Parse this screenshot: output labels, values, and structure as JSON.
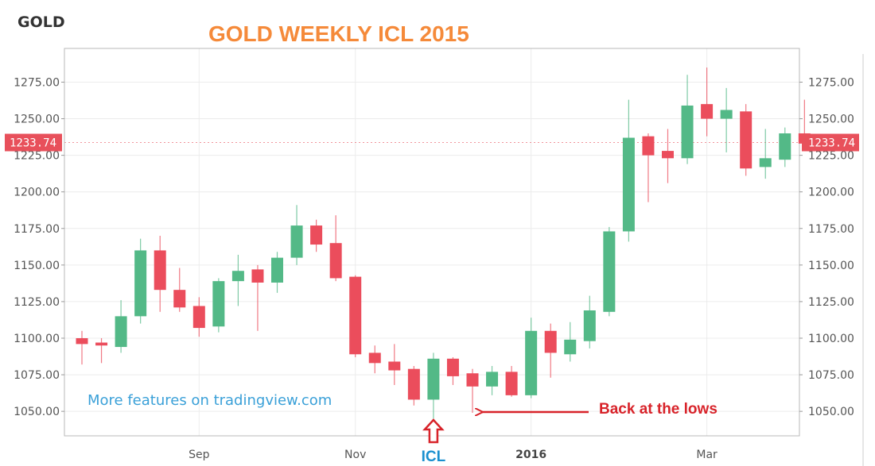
{
  "symbol": "GOLD",
  "chart_data": {
    "type": "candlestick",
    "title": "GOLD WEEKLY ICL 2015",
    "ylim": [
      1030,
      1292
    ],
    "y_ticks": [
      1050,
      1075,
      1100,
      1125,
      1150,
      1175,
      1200,
      1225,
      1250,
      1275
    ],
    "y_tick_labels": [
      "1050.00",
      "1075.00",
      "1100.00",
      "1125.00",
      "1150.00",
      "1175.00",
      "1200.00",
      "1225.00",
      "1250.00",
      "1275.00"
    ],
    "x_tick_labels": [
      {
        "label": "Sep",
        "bar": 6
      },
      {
        "label": "Nov",
        "bar": 14
      },
      {
        "label": "2016",
        "bar": 23
      },
      {
        "label": "Mar",
        "bar": 32
      }
    ],
    "candles": [
      {
        "o": 1100,
        "h": 1105,
        "l": 1082,
        "c": 1096
      },
      {
        "o": 1097,
        "h": 1100,
        "l": 1083,
        "c": 1095
      },
      {
        "o": 1094,
        "h": 1126,
        "l": 1090,
        "c": 1115
      },
      {
        "o": 1115,
        "h": 1168,
        "l": 1110,
        "c": 1160
      },
      {
        "o": 1160,
        "h": 1170,
        "l": 1118,
        "c": 1133
      },
      {
        "o": 1133,
        "h": 1148,
        "l": 1118,
        "c": 1121
      },
      {
        "o": 1122,
        "h": 1128,
        "l": 1101,
        "c": 1107
      },
      {
        "o": 1108,
        "h": 1141,
        "l": 1104,
        "c": 1139
      },
      {
        "o": 1139,
        "h": 1157,
        "l": 1122,
        "c": 1146
      },
      {
        "o": 1147,
        "h": 1150,
        "l": 1105,
        "c": 1138
      },
      {
        "o": 1138,
        "h": 1159,
        "l": 1131,
        "c": 1155
      },
      {
        "o": 1155,
        "h": 1191,
        "l": 1150,
        "c": 1177
      },
      {
        "o": 1177,
        "h": 1181,
        "l": 1159,
        "c": 1164
      },
      {
        "o": 1165,
        "h": 1184,
        "l": 1139,
        "c": 1141
      },
      {
        "o": 1142,
        "h": 1143,
        "l": 1087,
        "c": 1089
      },
      {
        "o": 1090,
        "h": 1095,
        "l": 1076,
        "c": 1083
      },
      {
        "o": 1084,
        "h": 1096,
        "l": 1068,
        "c": 1078
      },
      {
        "o": 1079,
        "h": 1081,
        "l": 1054,
        "c": 1058
      },
      {
        "o": 1058,
        "h": 1090,
        "l": 1045,
        "c": 1086
      },
      {
        "o": 1086,
        "h": 1087,
        "l": 1068,
        "c": 1074
      },
      {
        "o": 1076,
        "h": 1079,
        "l": 1049,
        "c": 1067
      },
      {
        "o": 1067,
        "h": 1081,
        "l": 1061,
        "c": 1077
      },
      {
        "o": 1077,
        "h": 1081,
        "l": 1060,
        "c": 1061
      },
      {
        "o": 1061,
        "h": 1114,
        "l": 1059,
        "c": 1105
      },
      {
        "o": 1105,
        "h": 1110,
        "l": 1073,
        "c": 1090
      },
      {
        "o": 1089,
        "h": 1111,
        "l": 1084,
        "c": 1099
      },
      {
        "o": 1098,
        "h": 1129,
        "l": 1093,
        "c": 1119
      },
      {
        "o": 1118,
        "h": 1176,
        "l": 1115,
        "c": 1173
      },
      {
        "o": 1173,
        "h": 1263,
        "l": 1166,
        "c": 1237
      },
      {
        "o": 1238,
        "h": 1240,
        "l": 1193,
        "c": 1225
      },
      {
        "o": 1228,
        "h": 1243,
        "l": 1206,
        "c": 1223
      },
      {
        "o": 1223,
        "h": 1280,
        "l": 1219,
        "c": 1259
      },
      {
        "o": 1260,
        "h": 1285,
        "l": 1238,
        "c": 1250
      },
      {
        "o": 1250,
        "h": 1271,
        "l": 1227,
        "c": 1256
      },
      {
        "o": 1255,
        "h": 1260,
        "l": 1211,
        "c": 1216
      },
      {
        "o": 1217,
        "h": 1243,
        "l": 1209,
        "c": 1223
      },
      {
        "o": 1222,
        "h": 1244,
        "l": 1217,
        "c": 1240
      },
      {
        "o": 1240,
        "h": 1263,
        "l": 1230,
        "c": 1233
      }
    ],
    "last_price": "1233.74",
    "colors": {
      "up": "#53b987",
      "down": "#eb4d5c",
      "price_tag": "#e8505b",
      "grid": "#ececec"
    },
    "grid": true,
    "annotations": {
      "watermark": "More features on tradingview.com",
      "back_at_lows": "Back at the lows",
      "icl_label": "ICL",
      "icl_bar": 18,
      "lows_bar": 20
    }
  }
}
